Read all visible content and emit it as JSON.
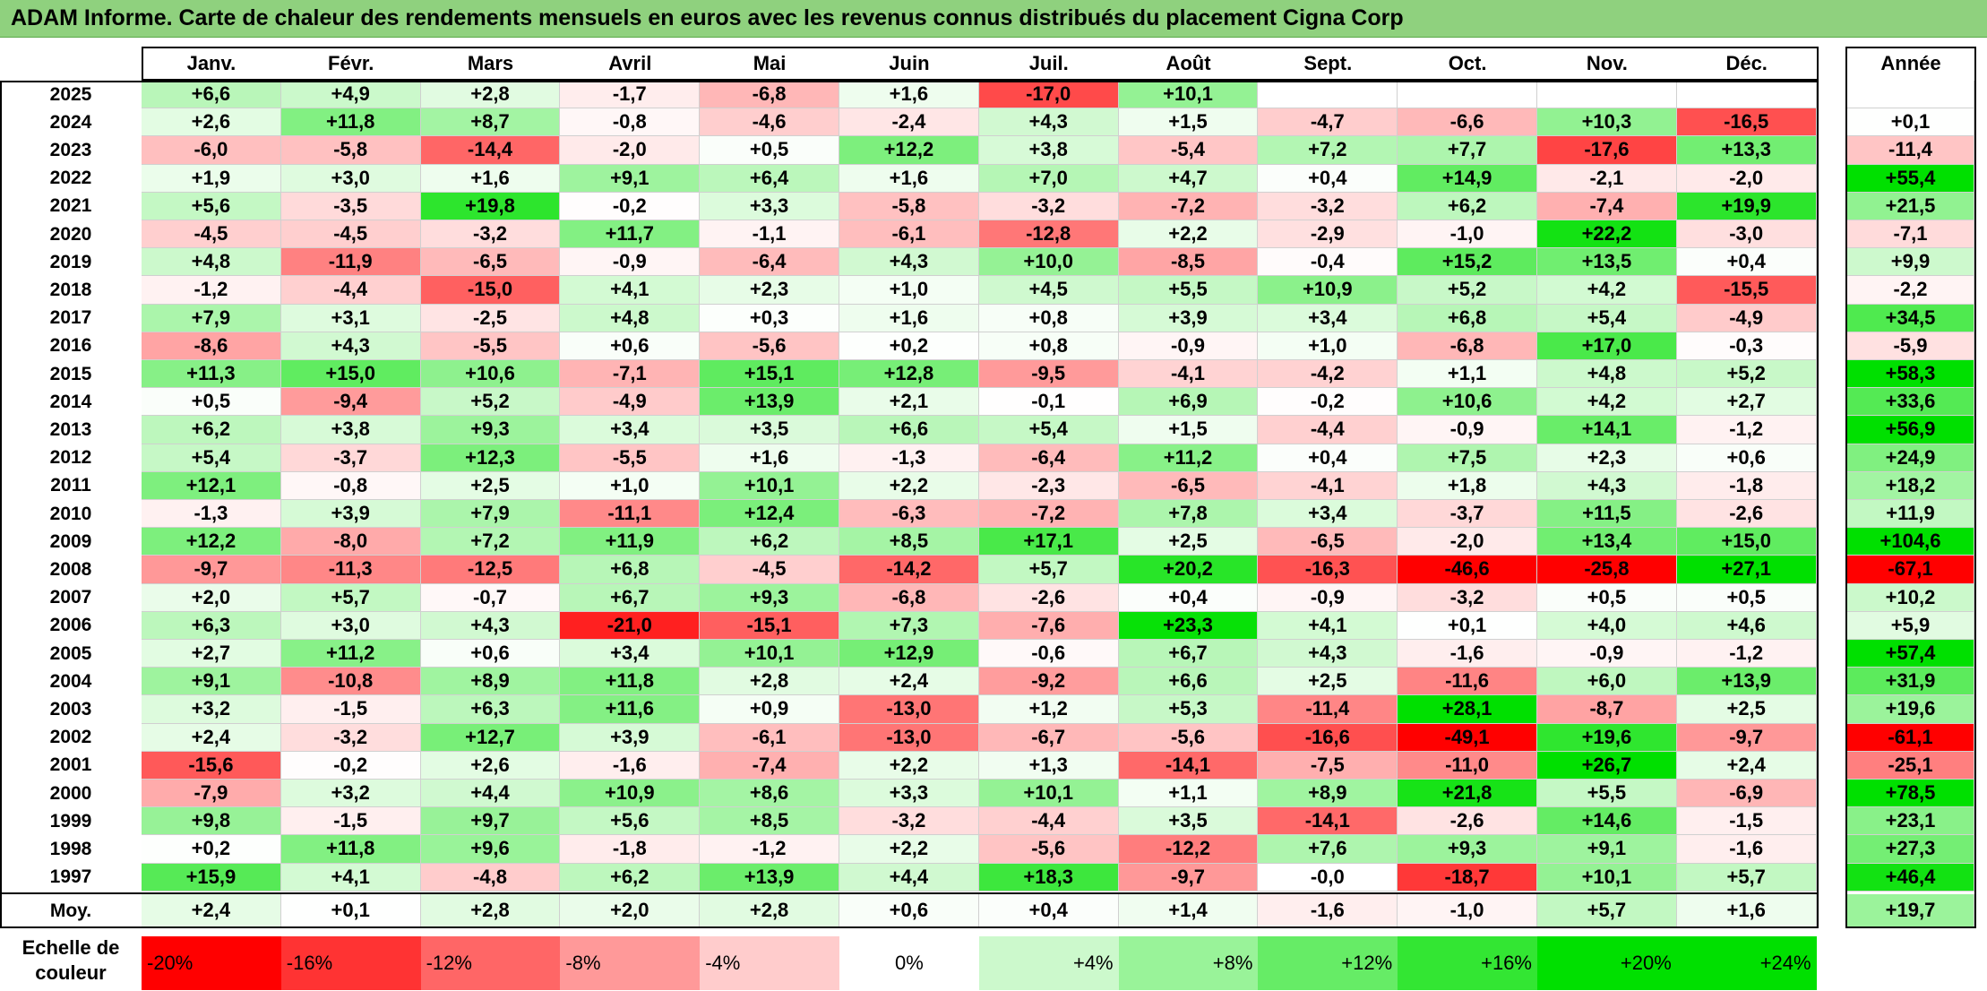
{
  "title": "ADAM Informe. Carte de chaleur des rendements mensuels en euros avec les revenus connus distribués du placement Cigna Corp",
  "chart_data": {
    "type": "heatmap",
    "title": "ADAM Informe. Carte de chaleur des rendements mensuels en euros avec les revenus connus distribués du placement Cigna Corp",
    "months": [
      "Janv.",
      "Févr.",
      "Mars",
      "Avril",
      "Mai",
      "Juin",
      "Juil.",
      "Août",
      "Sept.",
      "Oct.",
      "Nov.",
      "Déc."
    ],
    "year_header": "Année",
    "rows": [
      {
        "year": "2025",
        "values": [
          "+6,6",
          "+4,9",
          "+2,8",
          "-1,7",
          "-6,8",
          "+1,6",
          "-17,0",
          "+10,1",
          "",
          "",
          "",
          ""
        ],
        "annual": ""
      },
      {
        "year": "2024",
        "values": [
          "+2,6",
          "+11,8",
          "+8,7",
          "-0,8",
          "-4,6",
          "-2,4",
          "+4,3",
          "+1,5",
          "-4,7",
          "-6,6",
          "+10,3",
          "-16,5"
        ],
        "annual": "+0,1"
      },
      {
        "year": "2023",
        "values": [
          "-6,0",
          "-5,8",
          "-14,4",
          "-2,0",
          "+0,5",
          "+12,2",
          "+3,8",
          "-5,4",
          "+7,2",
          "+7,7",
          "-17,6",
          "+13,3"
        ],
        "annual": "-11,4"
      },
      {
        "year": "2022",
        "values": [
          "+1,9",
          "+3,0",
          "+1,6",
          "+9,1",
          "+6,4",
          "+1,6",
          "+7,0",
          "+4,7",
          "+0,4",
          "+14,9",
          "-2,1",
          "-2,0"
        ],
        "annual": "+55,4"
      },
      {
        "year": "2021",
        "values": [
          "+5,6",
          "-3,5",
          "+19,8",
          "-0,2",
          "+3,3",
          "-5,8",
          "-3,2",
          "-7,2",
          "-3,2",
          "+6,2",
          "-7,4",
          "+19,9"
        ],
        "annual": "+21,5"
      },
      {
        "year": "2020",
        "values": [
          "-4,5",
          "-4,5",
          "-3,2",
          "+11,7",
          "-1,1",
          "-6,1",
          "-12,8",
          "+2,2",
          "-2,9",
          "-1,0",
          "+22,2",
          "-3,0"
        ],
        "annual": "-7,1"
      },
      {
        "year": "2019",
        "values": [
          "+4,8",
          "-11,9",
          "-6,5",
          "-0,9",
          "-6,4",
          "+4,3",
          "+10,0",
          "-8,5",
          "-0,4",
          "+15,2",
          "+13,5",
          "+0,4"
        ],
        "annual": "+9,9"
      },
      {
        "year": "2018",
        "values": [
          "-1,2",
          "-4,4",
          "-15,0",
          "+4,1",
          "+2,3",
          "+1,0",
          "+4,5",
          "+5,5",
          "+10,9",
          "+5,2",
          "+4,2",
          "-15,5"
        ],
        "annual": "-2,2"
      },
      {
        "year": "2017",
        "values": [
          "+7,9",
          "+3,1",
          "-2,5",
          "+4,8",
          "+0,3",
          "+1,6",
          "+0,8",
          "+3,9",
          "+3,4",
          "+6,8",
          "+5,4",
          "-4,9"
        ],
        "annual": "+34,5"
      },
      {
        "year": "2016",
        "values": [
          "-8,6",
          "+4,3",
          "-5,5",
          "+0,6",
          "-5,6",
          "+0,2",
          "+0,8",
          "-0,9",
          "+1,0",
          "-6,8",
          "+17,0",
          "-0,3"
        ],
        "annual": "-5,9"
      },
      {
        "year": "2015",
        "values": [
          "+11,3",
          "+15,0",
          "+10,6",
          "-7,1",
          "+15,1",
          "+12,8",
          "-9,5",
          "-4,1",
          "-4,2",
          "+1,1",
          "+4,8",
          "+5,2"
        ],
        "annual": "+58,3"
      },
      {
        "year": "2014",
        "values": [
          "+0,5",
          "-9,4",
          "+5,2",
          "-4,9",
          "+13,9",
          "+2,1",
          "-0,1",
          "+6,9",
          "-0,2",
          "+10,6",
          "+4,2",
          "+2,7"
        ],
        "annual": "+33,6"
      },
      {
        "year": "2013",
        "values": [
          "+6,2",
          "+3,8",
          "+9,3",
          "+3,4",
          "+3,5",
          "+6,6",
          "+5,4",
          "+1,5",
          "-4,4",
          "-0,9",
          "+14,1",
          "-1,2"
        ],
        "annual": "+56,9"
      },
      {
        "year": "2012",
        "values": [
          "+5,4",
          "-3,7",
          "+12,3",
          "-5,5",
          "+1,6",
          "-1,3",
          "-6,4",
          "+11,2",
          "+0,4",
          "+7,5",
          "+2,3",
          "+0,6"
        ],
        "annual": "+24,9"
      },
      {
        "year": "2011",
        "values": [
          "+12,1",
          "-0,8",
          "+2,5",
          "+1,0",
          "+10,1",
          "+2,2",
          "-2,3",
          "-6,5",
          "-4,1",
          "+1,8",
          "+4,3",
          "-1,8"
        ],
        "annual": "+18,2"
      },
      {
        "year": "2010",
        "values": [
          "-1,3",
          "+3,9",
          "+7,9",
          "-11,1",
          "+12,4",
          "-6,3",
          "-7,2",
          "+7,8",
          "+3,4",
          "-3,7",
          "+11,5",
          "-2,6"
        ],
        "annual": "+11,9"
      },
      {
        "year": "2009",
        "values": [
          "+12,2",
          "-8,0",
          "+7,2",
          "+11,9",
          "+6,2",
          "+8,5",
          "+17,1",
          "+2,5",
          "-6,5",
          "-2,0",
          "+13,4",
          "+15,0"
        ],
        "annual": "+104,6"
      },
      {
        "year": "2008",
        "values": [
          "-9,7",
          "-11,3",
          "-12,5",
          "+6,8",
          "-4,5",
          "-14,2",
          "+5,7",
          "+20,2",
          "-16,3",
          "-46,6",
          "-25,8",
          "+27,1"
        ],
        "annual": "-67,1"
      },
      {
        "year": "2007",
        "values": [
          "+2,0",
          "+5,7",
          "-0,7",
          "+6,7",
          "+9,3",
          "-6,8",
          "-2,6",
          "+0,4",
          "-0,9",
          "-3,2",
          "+0,5",
          "+0,5"
        ],
        "annual": "+10,2"
      },
      {
        "year": "2006",
        "values": [
          "+6,3",
          "+3,0",
          "+4,3",
          "-21,0",
          "-15,1",
          "+7,3",
          "-7,6",
          "+23,3",
          "+4,1",
          "+0,1",
          "+4,0",
          "+4,6"
        ],
        "annual": "+5,9"
      },
      {
        "year": "2005",
        "values": [
          "+2,7",
          "+11,2",
          "+0,6",
          "+3,4",
          "+10,1",
          "+12,9",
          "-0,6",
          "+6,7",
          "+4,3",
          "-1,6",
          "-0,9",
          "-1,2"
        ],
        "annual": "+57,4"
      },
      {
        "year": "2004",
        "values": [
          "+9,1",
          "-10,8",
          "+8,9",
          "+11,8",
          "+2,8",
          "+2,4",
          "-9,2",
          "+6,6",
          "+2,5",
          "-11,6",
          "+6,0",
          "+13,9"
        ],
        "annual": "+31,9"
      },
      {
        "year": "2003",
        "values": [
          "+3,2",
          "-1,5",
          "+6,3",
          "+11,6",
          "+0,9",
          "-13,0",
          "+1,2",
          "+5,3",
          "-11,4",
          "+28,1",
          "-8,7",
          "+2,5"
        ],
        "annual": "+19,6"
      },
      {
        "year": "2002",
        "values": [
          "+2,4",
          "-3,2",
          "+12,7",
          "+3,9",
          "-6,1",
          "-13,0",
          "-6,7",
          "-5,6",
          "-16,6",
          "-49,1",
          "+19,6",
          "-9,7"
        ],
        "annual": "-61,1"
      },
      {
        "year": "2001",
        "values": [
          "-15,6",
          "-0,2",
          "+2,6",
          "-1,6",
          "-7,4",
          "+2,2",
          "+1,3",
          "-14,1",
          "-7,5",
          "-11,0",
          "+26,7",
          "+2,4"
        ],
        "annual": "-25,1"
      },
      {
        "year": "2000",
        "values": [
          "-7,9",
          "+3,2",
          "+4,4",
          "+10,9",
          "+8,6",
          "+3,3",
          "+10,1",
          "+1,1",
          "+8,9",
          "+21,8",
          "+5,5",
          "-6,9"
        ],
        "annual": "+78,5"
      },
      {
        "year": "1999",
        "values": [
          "+9,8",
          "-1,5",
          "+9,7",
          "+5,6",
          "+8,5",
          "-3,2",
          "-4,4",
          "+3,5",
          "-14,1",
          "-2,6",
          "+14,6",
          "-1,5"
        ],
        "annual": "+23,1"
      },
      {
        "year": "1998",
        "values": [
          "+0,2",
          "+11,8",
          "+9,6",
          "-1,8",
          "-1,2",
          "+2,2",
          "-5,6",
          "-12,2",
          "+7,6",
          "+9,3",
          "+9,1",
          "-1,6"
        ],
        "annual": "+27,3"
      },
      {
        "year": "1997",
        "values": [
          "+15,9",
          "+4,1",
          "-4,8",
          "+6,2",
          "+13,9",
          "+4,4",
          "+18,3",
          "-9,7",
          "-0,0",
          "-18,7",
          "+10,1",
          "+5,7"
        ],
        "annual": "+46,4"
      }
    ],
    "average_row": {
      "label": "Moy.",
      "values": [
        "+2,4",
        "+0,1",
        "+2,8",
        "+2,0",
        "+2,8",
        "+0,6",
        "+0,4",
        "+1,4",
        "-1,6",
        "-1,0",
        "+5,7",
        "+1,6"
      ],
      "annual": "+19,7"
    },
    "scale": {
      "label_line1": "Echelle de",
      "label_line2": "couleur",
      "steps": [
        "-20%",
        "-16%",
        "-12%",
        "-8%",
        "-4%",
        "0%",
        "+4%",
        "+8%",
        "+12%",
        "+16%",
        "+20%",
        "+24%"
      ]
    },
    "colors": {
      "negative_max": "#ff0000",
      "neutral": "#ffffff",
      "positive_max": "#00e000",
      "title_bar": "#8fd17e"
    }
  }
}
